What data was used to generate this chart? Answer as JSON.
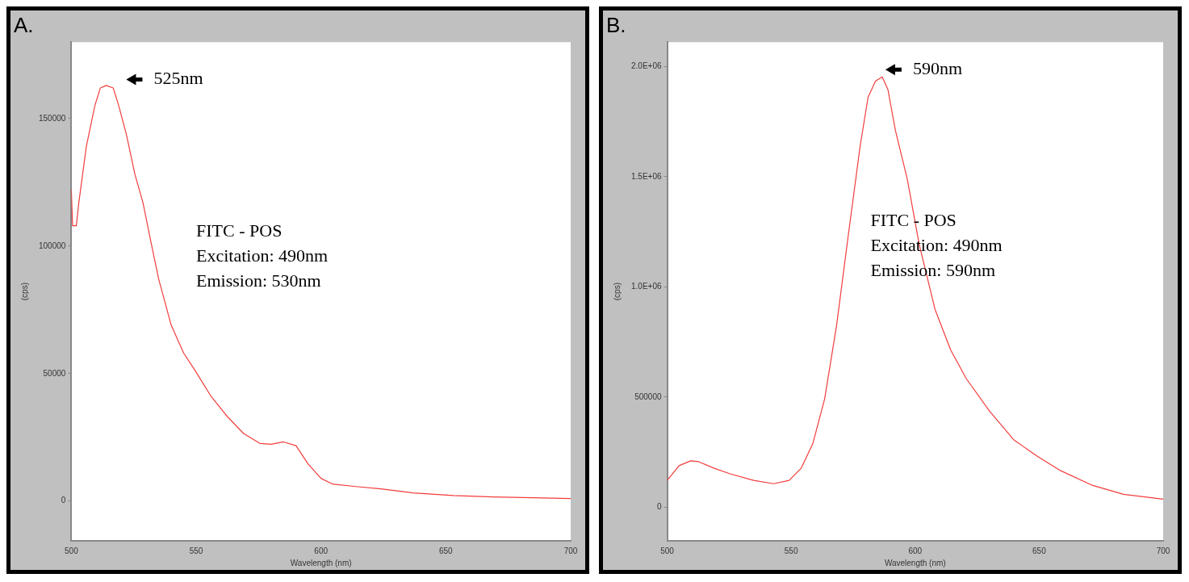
{
  "chart_data": [
    {
      "type": "line",
      "title": "A.",
      "xlabel": "Wavelength (nm)",
      "ylabel": "(cps)",
      "xlim": [
        500,
        700
      ],
      "ylim": [
        -15600,
        180000
      ],
      "xticks": [
        500,
        550,
        600,
        650,
        700
      ],
      "yticks": [
        0,
        50000,
        100000,
        150000
      ],
      "grid": false,
      "legend": false,
      "annotations": [
        "525nm",
        "FITC - POS",
        "Excitation: 490nm",
        "Emission: 530nm"
      ],
      "series": [
        {
          "color": "#f23c3c",
          "x": [
            500,
            500.5,
            502,
            503,
            506,
            509.4,
            511.6,
            514,
            516.8,
            519,
            522,
            525.5,
            528.7,
            532,
            535,
            540,
            545,
            549.7,
            556,
            562.6,
            569,
            575.5,
            580,
            585,
            590,
            594.8,
            600,
            604.5,
            614,
            624,
            636.8,
            653,
            669,
            685,
            700
          ],
          "values": [
            122000,
            108000,
            108000,
            117000,
            139000,
            155000,
            162000,
            163000,
            162000,
            155000,
            144000,
            128000,
            117000,
            101000,
            87000,
            69000,
            58000,
            51000,
            41000,
            33000,
            26500,
            22600,
            22300,
            23200,
            21700,
            14600,
            8900,
            6700,
            5700,
            4800,
            3200,
            2200,
            1600,
            1300,
            1000
          ]
        }
      ]
    },
    {
      "type": "line",
      "title": "B.",
      "xlabel": "Wavelength (nm)",
      "ylabel": "(cps)",
      "xlim": [
        500,
        700
      ],
      "ylim": [
        -152000,
        2110000
      ],
      "xticks": [
        500,
        550,
        600,
        650,
        700
      ],
      "yticks": [
        0,
        500000,
        {
          "value": 1000000,
          "label": "1.0E+06"
        },
        {
          "value": 1500000,
          "label": "1.5E+06"
        },
        {
          "value": 2000000,
          "label": "2.0E+06"
        }
      ],
      "grid": false,
      "legend": false,
      "annotations": [
        "590nm",
        "FITC - POS",
        "Excitation: 490nm",
        "Emission: 590nm"
      ],
      "series": [
        {
          "color": "#f23c3c",
          "x": [
            500,
            504.8,
            509.5,
            512.7,
            519,
            525.4,
            534.9,
            542.9,
            549.2,
            554,
            558.7,
            563.5,
            568.3,
            573,
            577.8,
            581,
            584,
            586.7,
            589,
            592,
            596.8,
            601.6,
            608,
            614.3,
            620.6,
            630,
            639.7,
            649,
            658.7,
            671.4,
            684,
            700
          ],
          "values": [
            122000,
            189000,
            211000,
            207000,
            177000,
            152000,
            122000,
            107000,
            122000,
            177000,
            288000,
            492000,
            824000,
            1231000,
            1638000,
            1860000,
            1933000,
            1952000,
            1896000,
            1711000,
            1490000,
            1194000,
            898000,
            714000,
            584000,
            436000,
            307000,
            233000,
            166000,
            100000,
            59000,
            37000
          ]
        }
      ]
    }
  ]
}
